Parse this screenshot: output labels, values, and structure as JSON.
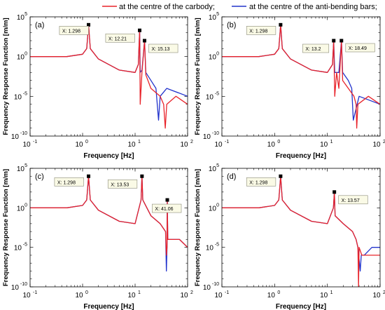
{
  "legend": {
    "items": [
      {
        "label": "at the centre of the carbody;",
        "color": "#e8232a"
      },
      {
        "label": "at the centre of the anti-bending bars;",
        "color": "#2233cc"
      }
    ]
  },
  "chart_data": [
    {
      "type": "line",
      "panel_label": "(a)",
      "xlabel": "Frequency [Hz]",
      "ylabel": "Frequency Response Function [m/m]",
      "xscale": "log",
      "yscale": "log",
      "xlim": [
        0.1,
        100
      ],
      "ylim": [
        1e-10,
        100000.0
      ],
      "x_ticks": [
        "10^-1",
        "10^0",
        "10^1",
        "10^2"
      ],
      "y_ticks": [
        "10^-10",
        "10^-5",
        "10^0",
        "10^5"
      ],
      "datatips": [
        {
          "label": "X: 1.298",
          "x": 1.298
        },
        {
          "label": "X: 12.21",
          "x": 12.21
        },
        {
          "label": "X: 15.13",
          "x": 15.13
        }
      ],
      "series": [
        {
          "name": "at the centre of the carbody",
          "color": "#e8232a",
          "x": [
            0.1,
            0.5,
            1.0,
            1.2,
            1.298,
            1.4,
            2,
            5,
            10,
            11.5,
            12.21,
            12.5,
            13.5,
            15.13,
            16,
            20,
            30,
            35,
            37.5,
            40,
            60,
            100
          ],
          "y": [
            1,
            1,
            2,
            10,
            10000,
            10,
            0.5,
            0.02,
            0.01,
            0.1,
            2000,
            1e-06,
            0.01,
            100,
            0.005,
            0.0001,
            1e-05,
            1e-06,
            1e-09,
            1e-06,
            1e-05,
            1e-06
          ]
        },
        {
          "name": "at the centre of the anti-bending bars",
          "color": "#2233cc",
          "x": [
            0.1,
            0.5,
            1.0,
            1.2,
            1.298,
            1.4,
            2,
            5,
            10,
            11.5,
            12.21,
            12.5,
            13.5,
            15.13,
            16,
            20,
            25,
            28,
            30,
            40,
            100
          ],
          "y": [
            1,
            1,
            2,
            10,
            10000,
            10,
            0.5,
            0.02,
            0.01,
            0.1,
            2000,
            0.01,
            0.02,
            100,
            0.01,
            0.001,
            0.0001,
            1e-08,
            1e-05,
            0.0001,
            1e-05
          ]
        }
      ]
    },
    {
      "type": "line",
      "panel_label": "(b)",
      "xlabel": "Frequency [Hz]",
      "ylabel": "Frequency Response Function [m/m]",
      "xscale": "log",
      "yscale": "log",
      "xlim": [
        0.1,
        100
      ],
      "ylim": [
        1e-10,
        100000.0
      ],
      "x_ticks": [
        "10^-1",
        "10^0",
        "10^1",
        "10^2"
      ],
      "y_ticks": [
        "10^-10",
        "10^-5",
        "10^0",
        "10^5"
      ],
      "datatips": [
        {
          "label": "X: 1.298",
          "x": 1.298
        },
        {
          "label": "X: 13.2",
          "x": 13.2
        },
        {
          "label": "X: 18.49",
          "x": 18.49
        }
      ],
      "series": [
        {
          "name": "at the centre of the carbody",
          "color": "#e8232a",
          "x": [
            0.1,
            0.5,
            1.0,
            1.2,
            1.298,
            1.4,
            2,
            5,
            10,
            12.5,
            13.2,
            13.8,
            15,
            16.5,
            18.49,
            19.5,
            25,
            32,
            35,
            36,
            38,
            60,
            100
          ],
          "y": [
            1,
            1,
            2,
            10,
            10000,
            10,
            0.5,
            0.02,
            0.01,
            0.1,
            100,
            1e-05,
            0.01,
            0.0001,
            100,
            0.001,
            0.0001,
            1e-05,
            1e-06,
            1e-09,
            1e-06,
            1e-05,
            1e-06
          ]
        },
        {
          "name": "at the centre of the anti-bending bars",
          "color": "#2233cc",
          "x": [
            0.1,
            0.5,
            1.0,
            1.2,
            1.298,
            1.4,
            2,
            5,
            10,
            12.5,
            13.2,
            13.8,
            15,
            16.5,
            18.49,
            19.5,
            25,
            29,
            31,
            40,
            100
          ],
          "y": [
            1,
            1,
            2,
            10,
            10000,
            10,
            0.5,
            0.02,
            0.01,
            0.1,
            100,
            0.01,
            0.01,
            0.01,
            100,
            0.01,
            0.001,
            0.0001,
            1e-08,
            1e-05,
            1e-06
          ]
        }
      ]
    },
    {
      "type": "line",
      "panel_label": "(c)",
      "xlabel": "Frequency [Hz]",
      "ylabel": "Frequency Response Function [m/m]",
      "xscale": "log",
      "yscale": "log",
      "xlim": [
        0.1,
        100
      ],
      "ylim": [
        1e-10,
        100000.0
      ],
      "x_ticks": [
        "10^-1",
        "10^0",
        "10^1",
        "10^2"
      ],
      "y_ticks": [
        "10^-10",
        "10^-5",
        "10^0",
        "10^5"
      ],
      "datatips": [
        {
          "label": "X: 1.298",
          "x": 1.298
        },
        {
          "label": "X: 13.53",
          "x": 13.53
        },
        {
          "label": "X: 41.06",
          "x": 41.06
        }
      ],
      "series": [
        {
          "name": "at the centre of the carbody",
          "color": "#e8232a",
          "x": [
            0.1,
            0.5,
            1.0,
            1.2,
            1.298,
            1.4,
            2,
            5,
            10,
            13,
            13.53,
            14,
            20,
            30,
            38,
            39.5,
            40.5,
            41.06,
            42,
            50,
            70,
            100
          ],
          "y": [
            1,
            1,
            2,
            10,
            10000,
            10,
            0.5,
            0.02,
            0.01,
            10,
            10000,
            10,
            0.1,
            0.01,
            0.001,
            1e-06,
            1e-05,
            10,
            0.0001,
            0.0001,
            0.0001,
            1e-05
          ]
        },
        {
          "name": "at the centre of the anti-bending bars",
          "color": "#2233cc",
          "x": [
            0.1,
            0.5,
            1.0,
            1.2,
            1.298,
            1.4,
            2,
            5,
            10,
            13,
            13.53,
            14,
            20,
            30,
            38,
            39.5,
            40.5,
            41.06,
            42,
            50,
            70,
            100
          ],
          "y": [
            1,
            1,
            2,
            10,
            10000,
            10,
            0.5,
            0.02,
            0.01,
            10,
            10000,
            10,
            0.1,
            0.01,
            0.001,
            1e-08,
            1e-05,
            10,
            0.0001,
            0.0001,
            0.0001,
            1e-05
          ]
        }
      ]
    },
    {
      "type": "line",
      "panel_label": "(d)",
      "xlabel": "Frequency [Hz]",
      "ylabel": "Frequency Response Function [m/m]",
      "xscale": "log",
      "yscale": "log",
      "xlim": [
        0.1,
        100
      ],
      "ylim": [
        1e-10,
        100000.0
      ],
      "x_ticks": [
        "10^-1",
        "10^0",
        "10^1",
        "10^2"
      ],
      "y_ticks": [
        "10^-10",
        "10^-5",
        "10^0",
        "10^5"
      ],
      "datatips": [
        {
          "label": "X: 1.298",
          "x": 1.298
        },
        {
          "label": "X: 13.57",
          "x": 13.57
        }
      ],
      "series": [
        {
          "name": "at the centre of the carbody",
          "color": "#e8232a",
          "x": [
            0.1,
            0.5,
            1.0,
            1.2,
            1.298,
            1.4,
            2,
            5,
            10,
            13,
            13.57,
            14,
            20,
            30,
            35,
            38,
            39,
            40,
            45,
            60,
            100
          ],
          "y": [
            1,
            1,
            2,
            10,
            10000,
            10,
            0.5,
            0.02,
            0.01,
            1,
            100,
            0.1,
            0.01,
            0.001,
            0.0001,
            1e-05,
            1e-10,
            1e-05,
            1e-06,
            1e-06,
            1e-06
          ]
        },
        {
          "name": "at the centre of the anti-bending bars",
          "color": "#2233cc",
          "x": [
            0.1,
            0.5,
            1.0,
            1.2,
            1.298,
            1.4,
            2,
            5,
            10,
            13,
            13.57,
            14,
            20,
            30,
            35,
            38,
            42,
            44,
            50,
            70,
            100
          ],
          "y": [
            1,
            1,
            2,
            10,
            10000,
            10,
            0.5,
            0.02,
            0.01,
            1,
            100,
            0.1,
            0.01,
            0.001,
            0.0001,
            1e-05,
            1e-08,
            1e-06,
            1e-06,
            1e-05,
            1e-05
          ]
        }
      ]
    }
  ]
}
